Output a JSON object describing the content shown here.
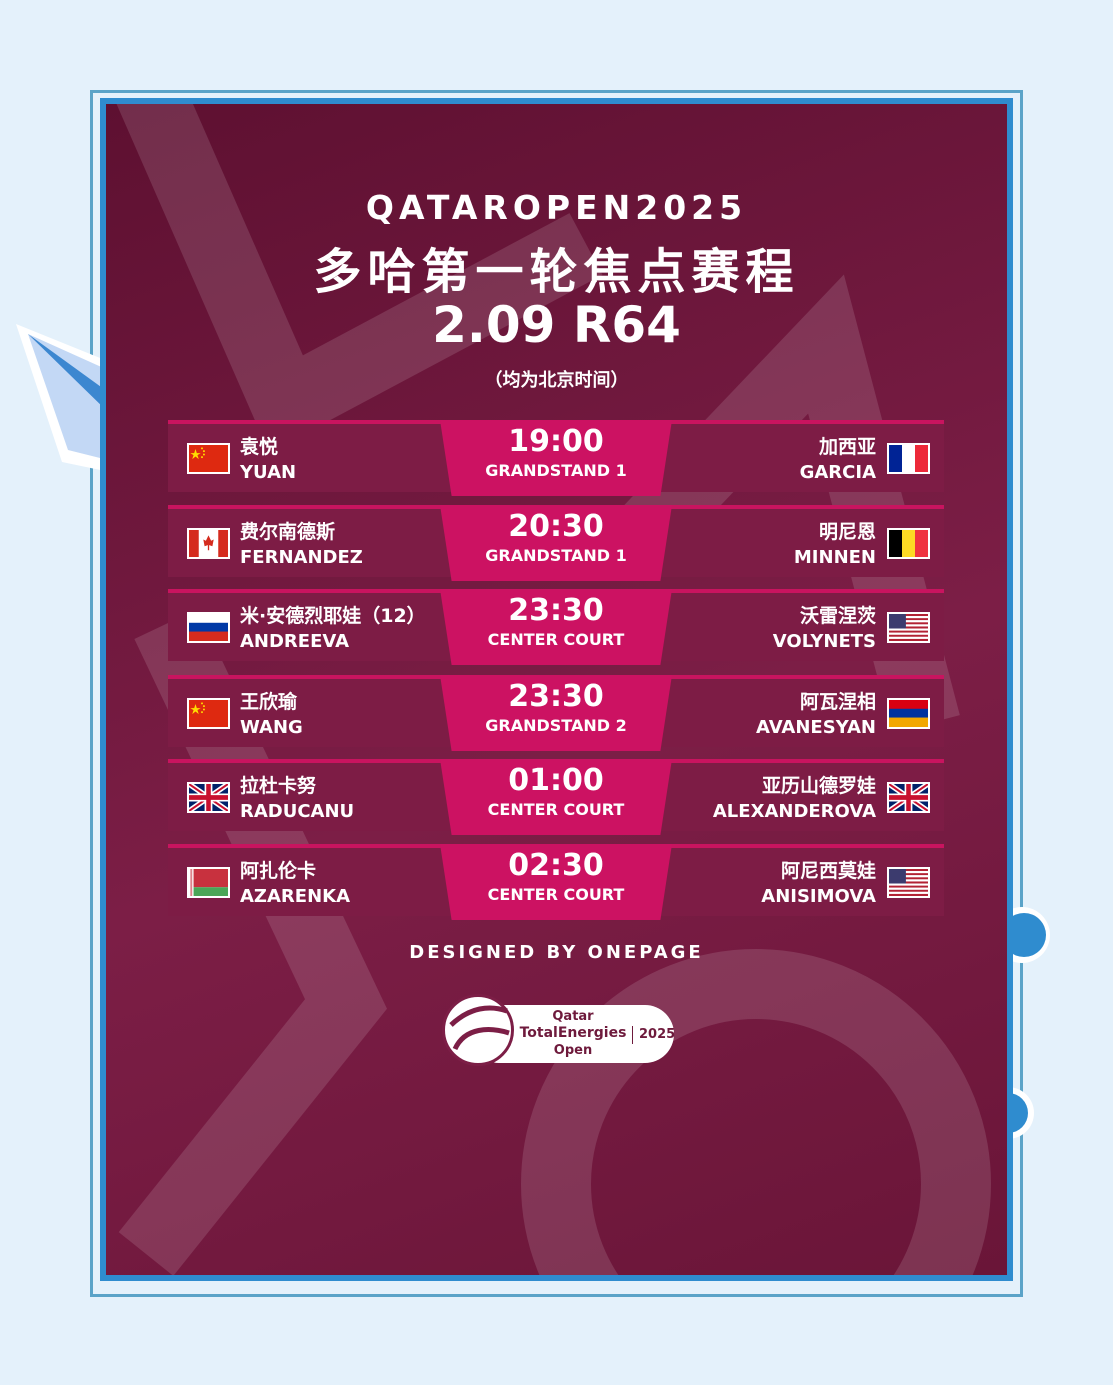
{
  "header": {
    "title_en": "QATAROPEN2025",
    "title_cn": "多哈第一轮焦点赛程",
    "date_round": "2.09 R64",
    "timezone_note": "（均为北京时间）"
  },
  "colors": {
    "card": "#6e1a3c",
    "row": "#7d1c45",
    "accent": "#cc1262",
    "page": "#e4f1fb",
    "frame": "#2f8ccf"
  },
  "matches": [
    {
      "time": "19:00",
      "venue": "GRANDSTAND 1",
      "left": {
        "cn": "袁悦",
        "en": "YUAN",
        "flag": "CN"
      },
      "right": {
        "cn": "加西亚",
        "en": "GARCIA",
        "flag": "FR"
      }
    },
    {
      "time": "20:30",
      "venue": "GRANDSTAND 1",
      "left": {
        "cn": "费尔南德斯",
        "en": "FERNANDEZ",
        "flag": "CA"
      },
      "right": {
        "cn": "明尼恩",
        "en": "MINNEN",
        "flag": "BE"
      }
    },
    {
      "time": "23:30",
      "venue": "CENTER COURT",
      "left": {
        "cn": "米·安德烈耶娃（12）",
        "en": "ANDREEVA",
        "flag": "RU"
      },
      "right": {
        "cn": "沃雷涅茨",
        "en": "VOLYNETS",
        "flag": "US"
      }
    },
    {
      "time": "23:30",
      "venue": "GRANDSTAND 2",
      "left": {
        "cn": "王欣瑜",
        "en": "WANG",
        "flag": "CN"
      },
      "right": {
        "cn": "阿瓦涅相",
        "en": "AVANESYAN",
        "flag": "AM"
      }
    },
    {
      "time": "01:00",
      "venue": "CENTER COURT",
      "left": {
        "cn": "拉杜卡努",
        "en": "RADUCANU",
        "flag": "GB"
      },
      "right": {
        "cn": "亚历山德罗娃",
        "en": "ALEXANDEROVA",
        "flag": "GB"
      }
    },
    {
      "time": "02:30",
      "venue": "CENTER COURT",
      "left": {
        "cn": "阿扎伦卡",
        "en": "AZARENKA",
        "flag": "BY"
      },
      "right": {
        "cn": "阿尼西莫娃",
        "en": "ANISIMOVA",
        "flag": "US"
      }
    }
  ],
  "footer": {
    "designed_by": "DESIGNED BY ONEPAGE",
    "logo": {
      "line1": "Qatar",
      "line2": "TotalEnergies",
      "line3": "Open",
      "year": "2025"
    }
  }
}
